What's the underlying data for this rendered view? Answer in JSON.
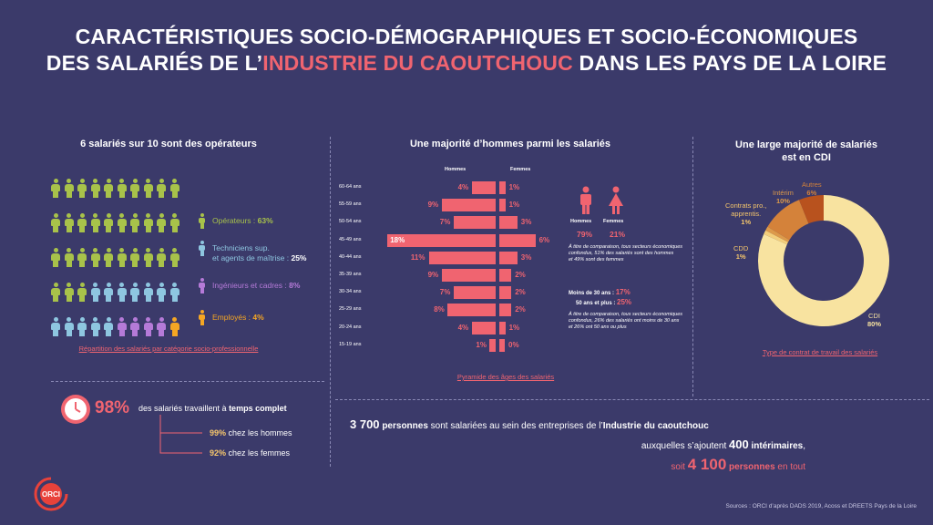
{
  "title": {
    "line1": "CARACTÉRISTIQUES SOCIO-DÉMOGRAPHIQUES ET SOCIO-ÉCONOMIQUES",
    "line2_pre": "DES SALARIÉS DE L’",
    "line2_hl": "INDUSTRIE DU CAOUTCHOUC",
    "line2_post": " DANS LES PAYS DE LA LOIRE"
  },
  "section1": {
    "heading": "6 salariés sur 10 sont des opérateurs",
    "caption": "Répartition des salariés par catégorie socio-professionnelle",
    "legend": [
      {
        "label": "Opérateurs : ",
        "value": "63%",
        "color": "#a8c24a"
      },
      {
        "label": "Techniciens sup.",
        "label2": "et agents de maîtrise : ",
        "value": "25%",
        "color": "#8ec6e0"
      },
      {
        "label": "Ingénieurs et cadres : ",
        "value": "8%",
        "color": "#b57ad8"
      },
      {
        "label": "Employés : ",
        "value": "4%",
        "color": "#f5a623"
      }
    ]
  },
  "section2": {
    "heading": "Une majorité d’hommes parmi les salariés",
    "col_hommes": "Hommes",
    "col_femmes": "Femmes",
    "caption": "Pyramide des âges des salariés",
    "gender": {
      "hommes_label": "Hommes",
      "femmes_label": "Femmes",
      "hommes_value": "79%",
      "femmes_value": "21%",
      "note": [
        "À titre de comparaison, tous secteurs économiques",
        "confondus, 51% des salariés sont des hommes",
        "et 49% sont des femmes"
      ]
    },
    "age_note": {
      "moins30_label": "Moins de 30 ans : ",
      "moins30_value": "17%",
      "plus50_label": "50 ans et plus : ",
      "plus50_value": "25%",
      "note": [
        "À titre de comparaison, tous secteurs économiques",
        "confondus, 26% des salariés ont moins de 30 ans",
        "et 26% ont 50 ans ou plus"
      ]
    }
  },
  "chart_data": [
    {
      "type": "bar",
      "categories": [
        "60-64 ans",
        "55-59 ans",
        "50-54 ans",
        "45-49 ans",
        "40-44 ans",
        "35-39 ans",
        "30-34 ans",
        "25-29 ans",
        "20-24 ans",
        "15-19 ans"
      ],
      "series": [
        {
          "name": "Hommes",
          "values": [
            4,
            9,
            7,
            18,
            11,
            9,
            7,
            8,
            4,
            1
          ]
        },
        {
          "name": "Femmes",
          "values": [
            1,
            1,
            3,
            6,
            3,
            2,
            2,
            2,
            1,
            0
          ]
        }
      ],
      "labels_hommes": [
        "4%",
        "9%",
        "7%",
        "18%",
        "11%",
        "9%",
        "7%",
        "8%",
        "4%",
        "1%"
      ],
      "labels_femmes": [
        "1%",
        "1%",
        "3%",
        "6%",
        "3%",
        "2%",
        "2%",
        "2%",
        "1%",
        "0%"
      ],
      "title": "Une majorité d’hommes parmi les salariés",
      "color": "#f06470"
    },
    {
      "type": "pie",
      "title_line1": "Une large majorité de salariés",
      "title_line2": "est en CDI",
      "slices": [
        {
          "name": "CDI",
          "value": 80,
          "label": "80%",
          "color": "#f8e3a0"
        },
        {
          "name": "CDD",
          "value": 1,
          "label": "1%",
          "color": "#f3ce7a"
        },
        {
          "name": "Contrats pro., apprentis.",
          "value": 1,
          "label": "1%",
          "color": "#dd9a4a"
        },
        {
          "name": "Intérim",
          "value": 10,
          "label": "10%",
          "color": "#d4823a"
        },
        {
          "name": "Autres",
          "value": 6,
          "label": "6%",
          "color": "#b8521e"
        }
      ],
      "caption": "Type de contrat de travail des salariés"
    }
  ],
  "pie_labels": {
    "autres": "Autres",
    "interim": "Intérim",
    "contrats1": "Contrats pro.,",
    "contrats2": "apprentis.",
    "cdd": "CDD",
    "cdi": "CDI"
  },
  "fulltime": {
    "value": "98%",
    "text_pre": "des salariés travaillent à ",
    "text_bold": "temps complet",
    "hommes_value": "99%",
    "hommes_label": " chez les hommes",
    "femmes_value": "92%",
    "femmes_label": " chez les femmes"
  },
  "summary": {
    "line1_num": "3 700",
    "line1_bold": " personnes",
    "line1_pre": " sont salariées au sein des entreprises de l’",
    "line1_bold2": "Industrie du caoutchouc",
    "line2_pre": "auxquelles s’ajoutent ",
    "line2_num": "400",
    "line2_bold": " intérimaires",
    "line2_post": ",",
    "line3_pre": "soit ",
    "line3_num": "4 100",
    "line3_bold": " personnes",
    "line3_post": " en tout"
  },
  "logo": "ORCI",
  "sources": "Sources : ORCI d’après DADS 2019, Acoss et DREETS Pays de la Loire"
}
